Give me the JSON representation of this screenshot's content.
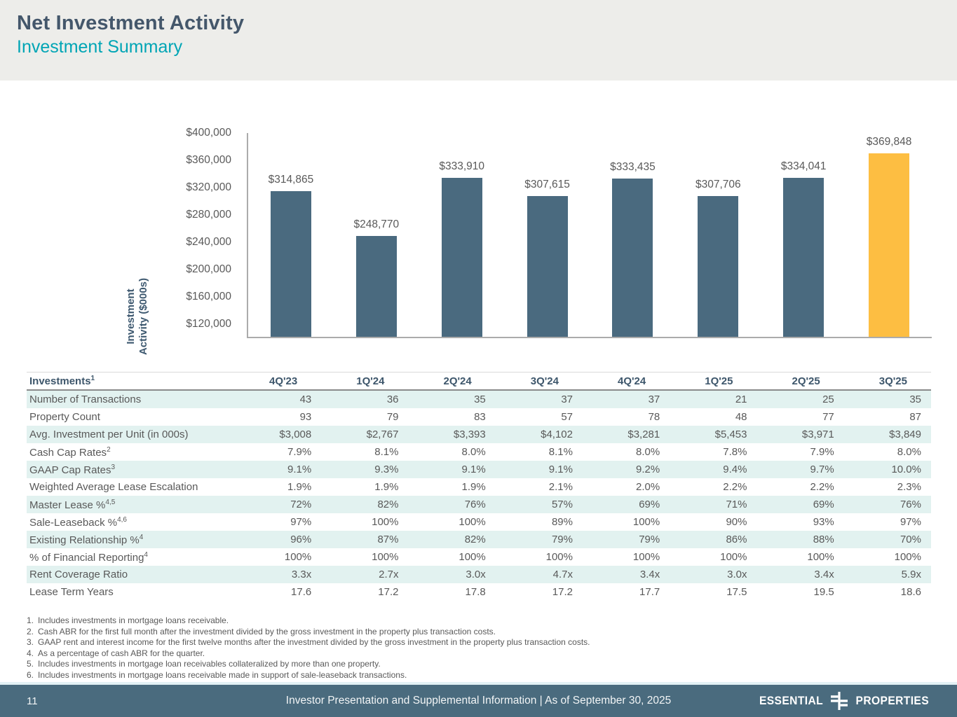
{
  "header": {
    "title": "Net Investment Activity",
    "subtitle": "Investment Summary"
  },
  "colors": {
    "title_slate": "#44576B",
    "accent_teal": "#00A5B5",
    "bar_slate": "#4A6A7F",
    "highlight_yellow": "#FDBE42",
    "footer_slate": "#4A6B7E",
    "table_row_tint": "#E2F2F0",
    "header_background": "#EDEDEA"
  },
  "chart_data": {
    "type": "bar",
    "categories": [
      "4Q'23",
      "1Q'24",
      "2Q'24",
      "3Q'24",
      "4Q'24",
      "1Q'25",
      "2Q'25",
      "3Q'25"
    ],
    "values": [
      314865,
      248770,
      333910,
      307615,
      333435,
      307706,
      334041,
      369848
    ],
    "value_labels": [
      "$314,865",
      "$248,770",
      "$333,910",
      "$307,615",
      "$333,435",
      "$307,706",
      "$334,041",
      "$369,848"
    ],
    "title": "",
    "xlabel": "",
    "ylabel": "Investment Activity ($000s)",
    "ylabel_lines": [
      "Investment",
      "Activity ($000s)"
    ],
    "ylim": [
      100000,
      400000
    ],
    "yticks": [
      {
        "label": "$400,000",
        "value": 400000
      },
      {
        "label": "$360,000",
        "value": 360000
      },
      {
        "label": "$320,000",
        "value": 320000
      },
      {
        "label": "$280,000",
        "value": 280000
      },
      {
        "label": "$240,000",
        "value": 240000
      },
      {
        "label": "$200,000",
        "value": 200000
      },
      {
        "label": "$160,000",
        "value": 160000
      },
      {
        "label": "$120,000",
        "value": 120000
      }
    ],
    "grid": false,
    "legend_position": "none",
    "bar_color": "#4A6A7F",
    "highlight_color": "#FDBE42",
    "highlight_index": 7
  },
  "table": {
    "header_label": "Investments",
    "header_superscript": "1",
    "columns": [
      "4Q'23",
      "1Q'24",
      "2Q'24",
      "3Q'24",
      "4Q'24",
      "1Q'25",
      "2Q'25",
      "3Q'25"
    ],
    "rows": [
      {
        "label": "Number of Transactions",
        "sup": "",
        "values": [
          "43",
          "36",
          "35",
          "37",
          "37",
          "21",
          "25",
          "35"
        ]
      },
      {
        "label": "Property Count",
        "sup": "",
        "values": [
          "93",
          "79",
          "83",
          "57",
          "78",
          "48",
          "77",
          "87"
        ]
      },
      {
        "label": "Avg. Investment per Unit (in 000s)",
        "sup": "",
        "values": [
          "$3,008",
          "$2,767",
          "$3,393",
          "$4,102",
          "$3,281",
          "$5,453",
          "$3,971",
          "$3,849"
        ]
      },
      {
        "label": "Cash Cap Rates",
        "sup": "2",
        "values": [
          "7.9%",
          "8.1%",
          "8.0%",
          "8.1%",
          "8.0%",
          "7.8%",
          "7.9%",
          "8.0%"
        ]
      },
      {
        "label": "GAAP Cap Rates",
        "sup": "3",
        "values": [
          "9.1%",
          "9.3%",
          "9.1%",
          "9.1%",
          "9.2%",
          "9.4%",
          "9.7%",
          "10.0%"
        ]
      },
      {
        "label": "Weighted Average Lease Escalation",
        "sup": "",
        "values": [
          "1.9%",
          "1.9%",
          "1.9%",
          "2.1%",
          "2.0%",
          "2.2%",
          "2.2%",
          "2.3%"
        ]
      },
      {
        "label": "Master Lease %",
        "sup": "4,5",
        "values": [
          "72%",
          "82%",
          "76%",
          "57%",
          "69%",
          "71%",
          "69%",
          "76%"
        ]
      },
      {
        "label": "Sale-Leaseback %",
        "sup": "4,6",
        "values": [
          "97%",
          "100%",
          "100%",
          "89%",
          "100%",
          "90%",
          "93%",
          "97%"
        ]
      },
      {
        "label": "Existing Relationship %",
        "sup": "4",
        "values": [
          "96%",
          "87%",
          "82%",
          "79%",
          "79%",
          "86%",
          "88%",
          "70%"
        ]
      },
      {
        "label": "% of Financial Reporting",
        "sup": "4",
        "values": [
          "100%",
          "100%",
          "100%",
          "100%",
          "100%",
          "100%",
          "100%",
          "100%"
        ]
      },
      {
        "label": "Rent Coverage Ratio",
        "sup": "",
        "values": [
          "3.3x",
          "2.7x",
          "3.0x",
          "4.7x",
          "3.4x",
          "3.0x",
          "3.4x",
          "5.9x"
        ]
      },
      {
        "label": "Lease Term Years",
        "sup": "",
        "values": [
          "17.6",
          "17.2",
          "17.8",
          "17.2",
          "17.7",
          "17.5",
          "19.5",
          "18.6"
        ]
      }
    ]
  },
  "footnotes": [
    {
      "num": "1.",
      "text": "Includes investments in mortgage loans receivable."
    },
    {
      "num": "2.",
      "text": "Cash ABR for the first full month after the investment divided by the gross investment in the property plus transaction costs."
    },
    {
      "num": "3.",
      "text": "GAAP rent and interest income for the first twelve months after the investment divided by the gross investment in the property plus transaction costs."
    },
    {
      "num": "4.",
      "text": "As a percentage of cash ABR for the quarter."
    },
    {
      "num": "5.",
      "text": "Includes investments in mortgage loan receivables collateralized by more than one property."
    },
    {
      "num": "6.",
      "text": "Includes investments in mortgage loans receivable made in support of sale-leaseback transactions."
    }
  ],
  "footer": {
    "page_number": "11",
    "caption": "Investor Presentation and Supplemental Information |  As of September 30, 2025",
    "logo_left": "ESSENTIAL",
    "logo_right": "PROPERTIES"
  }
}
